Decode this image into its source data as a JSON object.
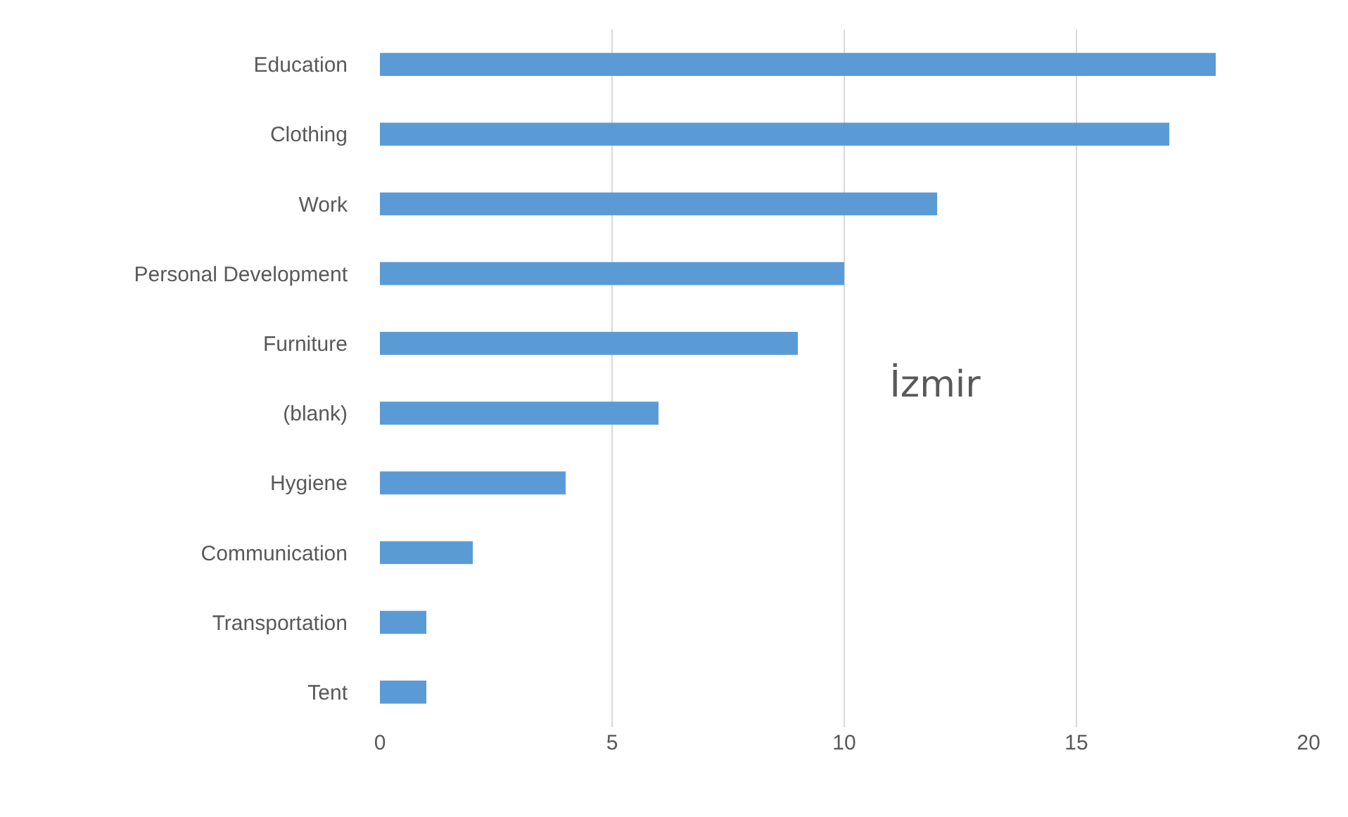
{
  "chart_data": {
    "type": "bar",
    "title": "İzmir",
    "orientation": "horizontal",
    "categories": [
      "Education",
      "Clothing",
      "Work",
      "Personal Development",
      "Furniture",
      "(blank)",
      "Hygiene",
      "Communication",
      "Transportation",
      "Tent"
    ],
    "values": [
      18,
      17,
      12,
      10,
      9,
      6,
      4,
      2,
      1,
      1
    ],
    "color": "#5b9bd5",
    "xlim": [
      0,
      20
    ],
    "xticks": [
      0,
      5,
      10,
      15,
      20
    ],
    "grid": "x",
    "legend": false
  }
}
